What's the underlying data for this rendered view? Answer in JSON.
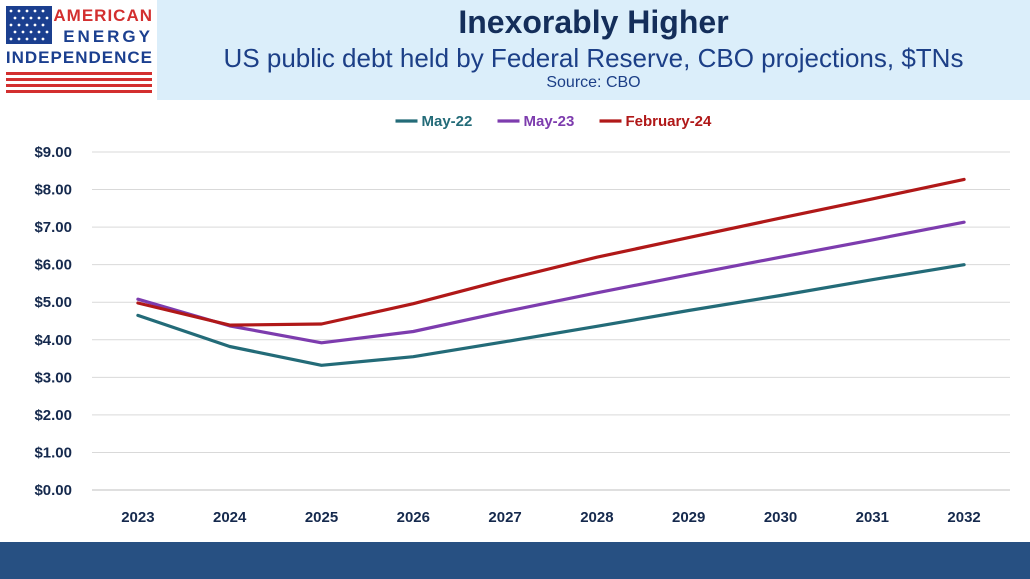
{
  "header": {
    "title": "Inexorably Higher",
    "subtitle": "US public debt held by Federal Reserve, CBO projections, $TNs",
    "source": "Source: CBO"
  },
  "logo": {
    "line1": "AMERICAN",
    "line2": "ENERGY",
    "line3": "INDEPENDENCE",
    "colors": {
      "red": "#d32f2f",
      "blue": "#1b3f8f"
    }
  },
  "chart_data": {
    "type": "line",
    "x": [
      2023,
      2024,
      2025,
      2026,
      2027,
      2028,
      2029,
      2030,
      2031,
      2032
    ],
    "categories": [
      "2023",
      "2024",
      "2025",
      "2026",
      "2027",
      "2028",
      "2029",
      "2030",
      "2031",
      "2032"
    ],
    "ylim": [
      0,
      9
    ],
    "yticks": [
      0,
      1,
      2,
      3,
      4,
      5,
      6,
      7,
      8,
      9
    ],
    "ytick_labels": [
      "$0.00",
      "$1.00",
      "$2.00",
      "$3.00",
      "$4.00",
      "$5.00",
      "$6.00",
      "$7.00",
      "$8.00",
      "$9.00"
    ],
    "grid": true,
    "legend_position": "top-center",
    "series": [
      {
        "name": "May-22",
        "color": "#236b78",
        "values": [
          4.65,
          3.82,
          3.32,
          3.55,
          3.95,
          4.36,
          4.78,
          5.18,
          5.6,
          6.0
        ]
      },
      {
        "name": "May-23",
        "color": "#7d3cae",
        "values": [
          5.08,
          4.37,
          3.92,
          4.22,
          4.75,
          5.25,
          5.73,
          6.2,
          6.66,
          7.13
        ]
      },
      {
        "name": "February-24",
        "color": "#b01818",
        "values": [
          4.98,
          4.39,
          4.42,
          4.96,
          5.6,
          6.2,
          6.72,
          7.24,
          7.75,
          8.27
        ]
      }
    ]
  }
}
